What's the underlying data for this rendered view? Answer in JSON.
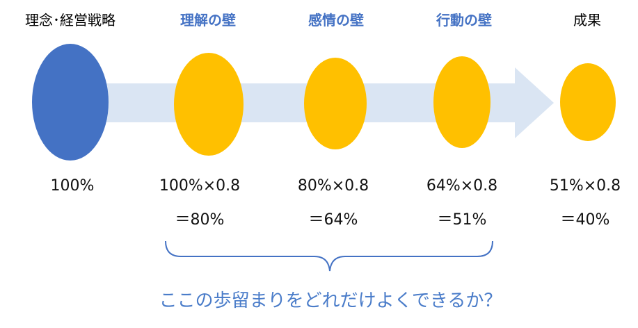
{
  "stages": [
    {
      "title": "理念･経営戦略",
      "style": "plain",
      "calc_line1": "100%",
      "calc_line2": ""
    },
    {
      "title": "理解の壁",
      "style": "accent",
      "calc_line1": "100%×0.8",
      "calc_line2": "＝80%"
    },
    {
      "title": "感情の壁",
      "style": "accent",
      "calc_line1": "80%×0.8",
      "calc_line2": "＝64%"
    },
    {
      "title": "行動の壁",
      "style": "accent",
      "calc_line1": "64%×0.8",
      "calc_line2": "＝51%"
    },
    {
      "title": "成果",
      "style": "plain",
      "calc_line1": "51%×0.8",
      "calc_line2": "＝40%"
    }
  ],
  "question": "ここの歩留まりをどれだけよくできるか？",
  "colors": {
    "start_circle": "#4472c4",
    "stage_circle": "#ffc000",
    "arrow": "#dae5f3",
    "brace": "#4472c4",
    "accent_text": "#4472c4",
    "question_text": "#4a7cc9"
  }
}
